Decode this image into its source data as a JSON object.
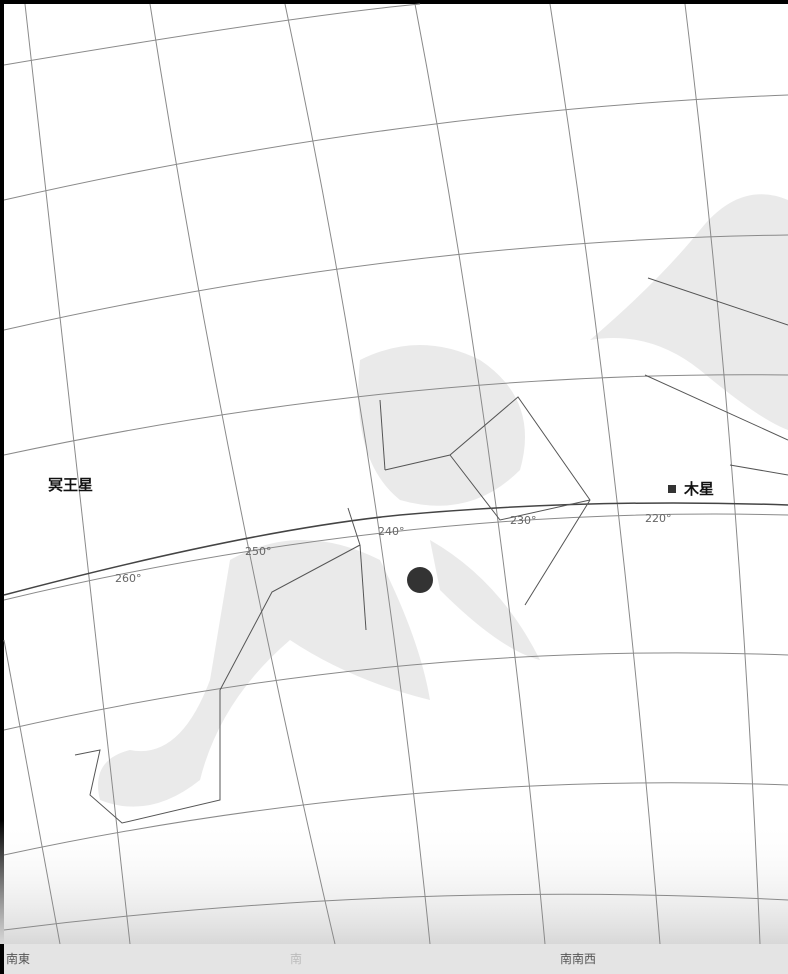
{
  "labels": {
    "planets": [
      "冥王星",
      "木星"
    ],
    "ecliptic": [
      "260°",
      "250°",
      "240°",
      "230°",
      "220°"
    ],
    "horizon": [
      "南東",
      "南",
      "南南西"
    ]
  }
}
